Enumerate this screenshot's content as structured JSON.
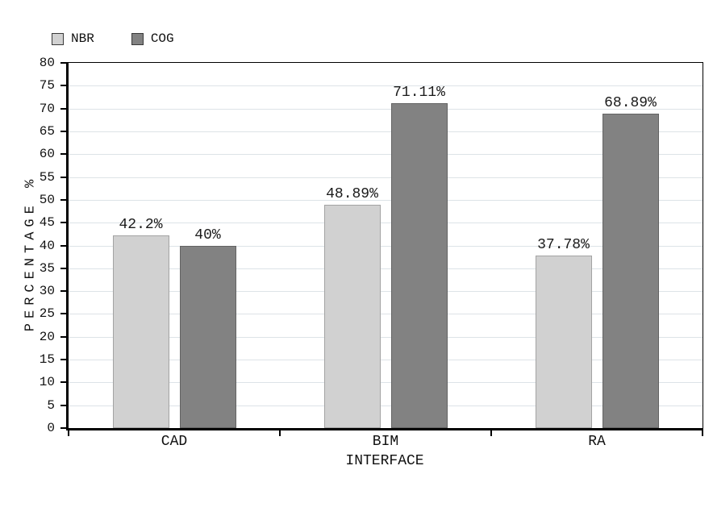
{
  "figure": {
    "background": "#ffffff",
    "text_color": "#111111"
  },
  "chart_data": {
    "type": "bar",
    "title": "",
    "xlabel": "INTERFACE",
    "ylabel": "PERCENTAGE %",
    "categories": [
      "CAD",
      "BIM",
      "RA"
    ],
    "series": [
      {
        "name": "NBR",
        "values": [
          42.2,
          48.89,
          37.78
        ],
        "labels": [
          "42.2%",
          "48.89%",
          "37.78%"
        ],
        "color": "#d1d1d1",
        "border_color": "#a3a3a3"
      },
      {
        "name": "COG",
        "values": [
          40,
          71.11,
          68.89
        ],
        "labels": [
          "40%",
          "71.11%",
          "68.89%"
        ],
        "color": "#828282",
        "border_color": "#636363"
      }
    ],
    "ylim": [
      0,
      80
    ],
    "ytick_step": 5,
    "grid": "horizontal",
    "gridline_color": "#dde3e7",
    "legend_position": "top-left",
    "axis_color": "#000000"
  }
}
